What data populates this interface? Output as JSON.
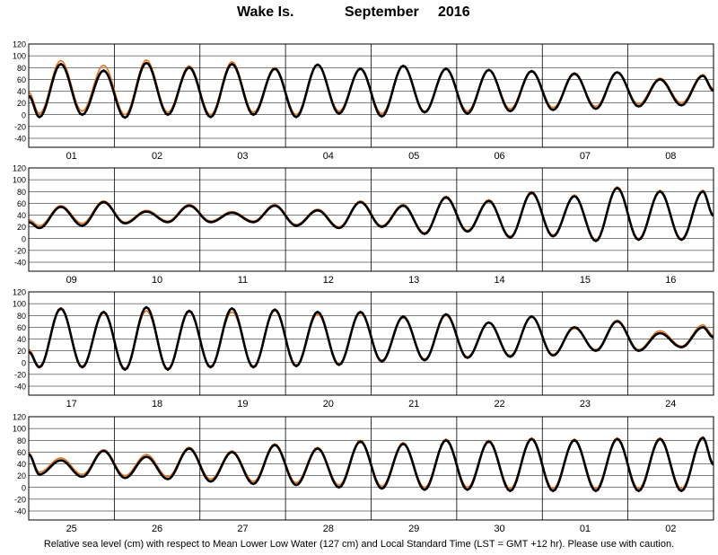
{
  "title": {
    "station": "Wake Is.",
    "month": "September",
    "year": "2016"
  },
  "footer": "Relative sea level (cm) with respect to Mean Lower Low Water (127 cm) and Local Standard Time (LST = GMT +12 hr). Please use with caution.",
  "colors": {
    "observed": "#000000",
    "predicted": "#e8741e",
    "grid": "#000000"
  },
  "chart_data": [
    {
      "type": "line",
      "x_labels": [
        "01",
        "02",
        "03",
        "04",
        "05",
        "06",
        "07",
        "08"
      ],
      "ylim": [
        -40,
        120
      ],
      "yticks": [
        -40,
        -20,
        0,
        20,
        40,
        60,
        80,
        100,
        120
      ],
      "tide_params": {
        "mean": [
          40,
          40,
          40,
          40,
          40,
          40,
          40,
          40
        ],
        "semidiurnal_amp": [
          40,
          40,
          40,
          38,
          36,
          34,
          27,
          22
        ],
        "diurnal_amp": [
          6,
          6,
          7,
          8,
          7,
          6,
          5,
          4
        ]
      },
      "series": [
        {
          "values_start": 32,
          "peaks": [
            86,
            75,
            88,
            80,
            86,
            78,
            85,
            78,
            83,
            78,
            76,
            74,
            70,
            72,
            60,
            66
          ],
          "troughs": [
            -4,
            0,
            -5,
            0,
            -4,
            0,
            -4,
            2,
            -3,
            4,
            2,
            6,
            8,
            10,
            14,
            16
          ]
        },
        {
          "values_start": 38,
          "peaks": [
            92,
            84,
            93,
            83,
            90,
            80,
            86,
            79,
            82,
            78,
            76,
            75,
            68,
            72,
            62,
            68
          ],
          "troughs": [
            2,
            6,
            0,
            4,
            0,
            4,
            0,
            6,
            2,
            6,
            6,
            10,
            12,
            14,
            18,
            20
          ]
        }
      ]
    },
    {
      "type": "line",
      "x_labels": [
        "09",
        "10",
        "11",
        "12",
        "13",
        "14",
        "15",
        "16"
      ],
      "ylim": [
        -40,
        120
      ],
      "yticks": [
        -40,
        -20,
        0,
        20,
        40,
        60,
        80,
        100,
        120
      ],
      "tide_params": {
        "mean": [
          38,
          38,
          38,
          38,
          38,
          38,
          38,
          38
        ],
        "semidiurnal_amp": [
          14,
          10,
          6,
          10,
          20,
          28,
          36,
          44
        ],
        "diurnal_amp": [
          6,
          8,
          8,
          8,
          8,
          8,
          8,
          8
        ]
      },
      "series": [
        {
          "values_start": 28,
          "peaks": [
            54,
            62,
            46,
            56,
            44,
            56,
            48,
            62,
            56,
            70,
            64,
            78,
            72,
            86,
            80,
            80
          ],
          "troughs": [
            18,
            22,
            26,
            28,
            28,
            28,
            22,
            18,
            20,
            8,
            12,
            2,
            4,
            -4,
            -2,
            -2
          ]
        },
        {
          "values_start": 32,
          "peaks": [
            56,
            64,
            48,
            58,
            46,
            58,
            50,
            64,
            58,
            72,
            66,
            80,
            74,
            88,
            82,
            82
          ],
          "troughs": [
            22,
            26,
            28,
            30,
            30,
            30,
            24,
            20,
            22,
            10,
            14,
            4,
            6,
            -2,
            0,
            0
          ]
        }
      ]
    },
    {
      "type": "line",
      "x_labels": [
        "17",
        "18",
        "19",
        "20",
        "21",
        "22",
        "23",
        "24"
      ],
      "ylim": [
        -40,
        120
      ],
      "yticks": [
        -40,
        -20,
        0,
        20,
        40,
        60,
        80,
        100,
        120
      ],
      "tide_params": {
        "mean": [
          40,
          40,
          40,
          40,
          40,
          40,
          40,
          40
        ],
        "semidiurnal_amp": [
          44,
          46,
          46,
          44,
          38,
          30,
          22,
          16
        ],
        "diurnal_amp": [
          6,
          6,
          6,
          6,
          6,
          6,
          6,
          6
        ]
      },
      "series": [
        {
          "values_start": 18,
          "peaks": [
            92,
            86,
            94,
            88,
            92,
            90,
            86,
            86,
            78,
            82,
            68,
            78,
            60,
            70,
            50,
            60
          ],
          "troughs": [
            -8,
            -8,
            -12,
            -12,
            -8,
            -8,
            -6,
            -4,
            2,
            4,
            8,
            10,
            12,
            20,
            20,
            26
          ]
        },
        {
          "values_start": 22,
          "peaks": [
            90,
            84,
            88,
            86,
            86,
            88,
            82,
            84,
            76,
            80,
            68,
            78,
            58,
            72,
            54,
            64
          ],
          "troughs": [
            -6,
            -6,
            -10,
            -10,
            -6,
            -6,
            -4,
            -2,
            4,
            6,
            10,
            12,
            14,
            22,
            22,
            28
          ]
        }
      ]
    },
    {
      "type": "line",
      "x_labels": [
        "25",
        "26",
        "27",
        "28",
        "29",
        "30",
        "01",
        "02"
      ],
      "ylim": [
        -40,
        120
      ],
      "yticks": [
        -40,
        -20,
        0,
        20,
        40,
        60,
        80,
        100,
        120
      ],
      "tide_params": {
        "mean": [
          40,
          40,
          40,
          40,
          40,
          40,
          40,
          40
        ],
        "semidiurnal_amp": [
          14,
          18,
          24,
          30,
          36,
          40,
          42,
          42
        ],
        "diurnal_amp": [
          6,
          8,
          8,
          8,
          8,
          8,
          8,
          8
        ]
      },
      "series": [
        {
          "values_start": 56,
          "peaks": [
            46,
            62,
            52,
            66,
            60,
            72,
            66,
            78,
            74,
            80,
            78,
            82,
            80,
            82,
            82,
            84
          ],
          "troughs": [
            22,
            18,
            16,
            14,
            10,
            6,
            4,
            0,
            -2,
            -4,
            -4,
            -6,
            -6,
            -6,
            -6,
            -6
          ]
        },
        {
          "values_start": 58,
          "peaks": [
            50,
            64,
            56,
            68,
            62,
            74,
            68,
            80,
            76,
            82,
            80,
            84,
            82,
            84,
            84,
            86
          ],
          "troughs": [
            26,
            22,
            20,
            18,
            14,
            10,
            8,
            4,
            2,
            0,
            0,
            -2,
            -2,
            -2,
            -2,
            -2
          ]
        }
      ]
    }
  ]
}
